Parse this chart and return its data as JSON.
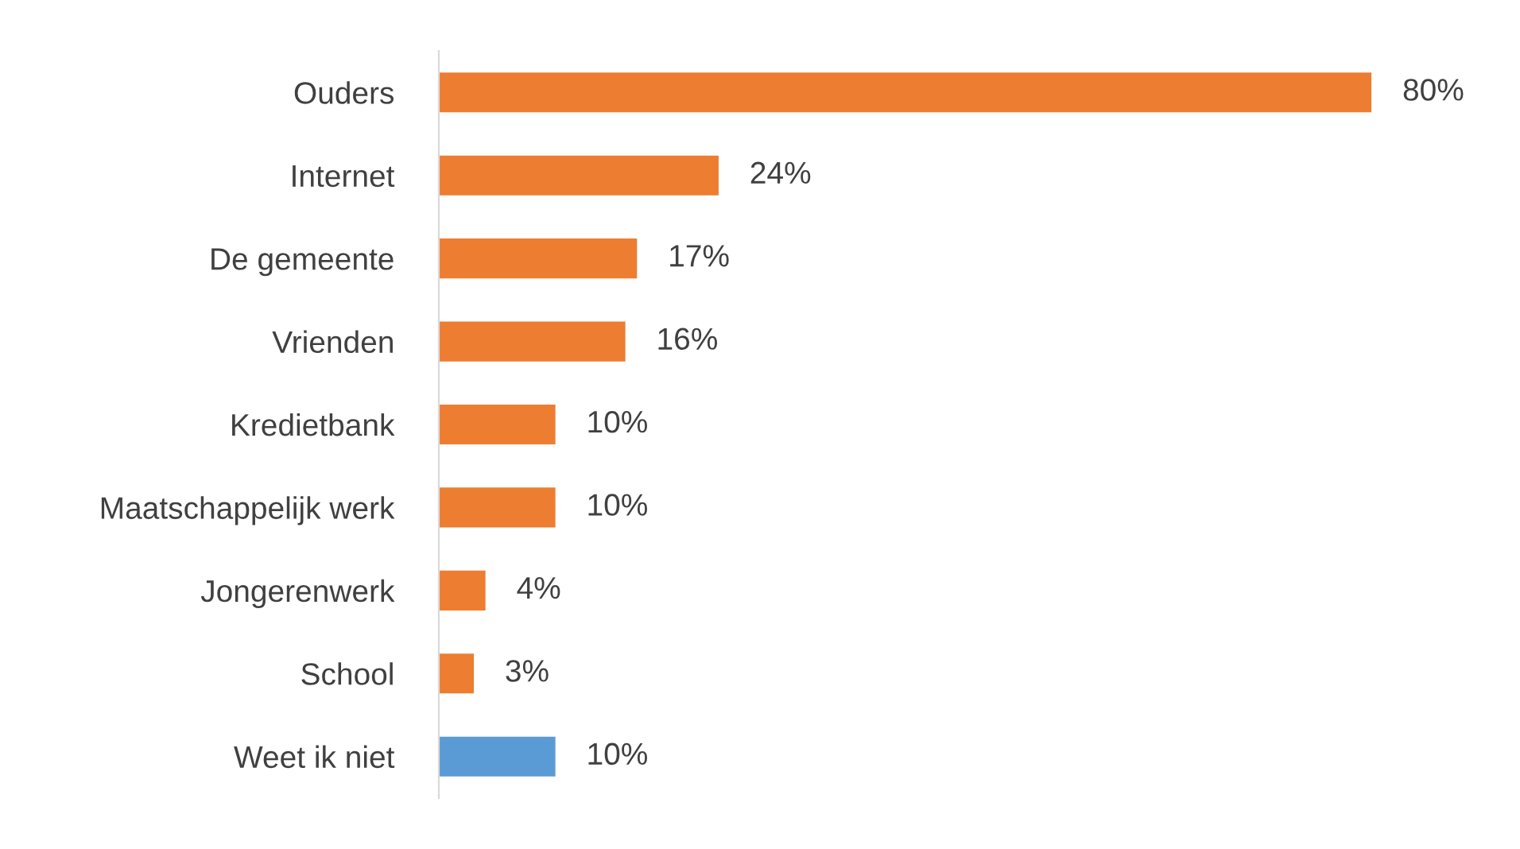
{
  "chart_data": {
    "type": "bar",
    "orientation": "horizontal",
    "categories": [
      "Ouders",
      "Internet",
      "De gemeente",
      "Vrienden",
      "Kredietbank",
      "Maatschappelijk werk",
      "Jongerenwerk",
      "School",
      "Weet ik niet"
    ],
    "values": [
      80,
      24,
      17,
      16,
      10,
      10,
      4,
      3,
      10
    ],
    "colors": [
      "#ed7d31",
      "#ed7d31",
      "#ed7d31",
      "#ed7d31",
      "#ed7d31",
      "#ed7d31",
      "#ed7d31",
      "#ed7d31",
      "#5b9bd5"
    ],
    "value_labels": [
      "80%",
      "24%",
      "17%",
      "16%",
      "10%",
      "10%",
      "4%",
      "3%",
      "10%"
    ],
    "grid": false,
    "legend": false
  }
}
